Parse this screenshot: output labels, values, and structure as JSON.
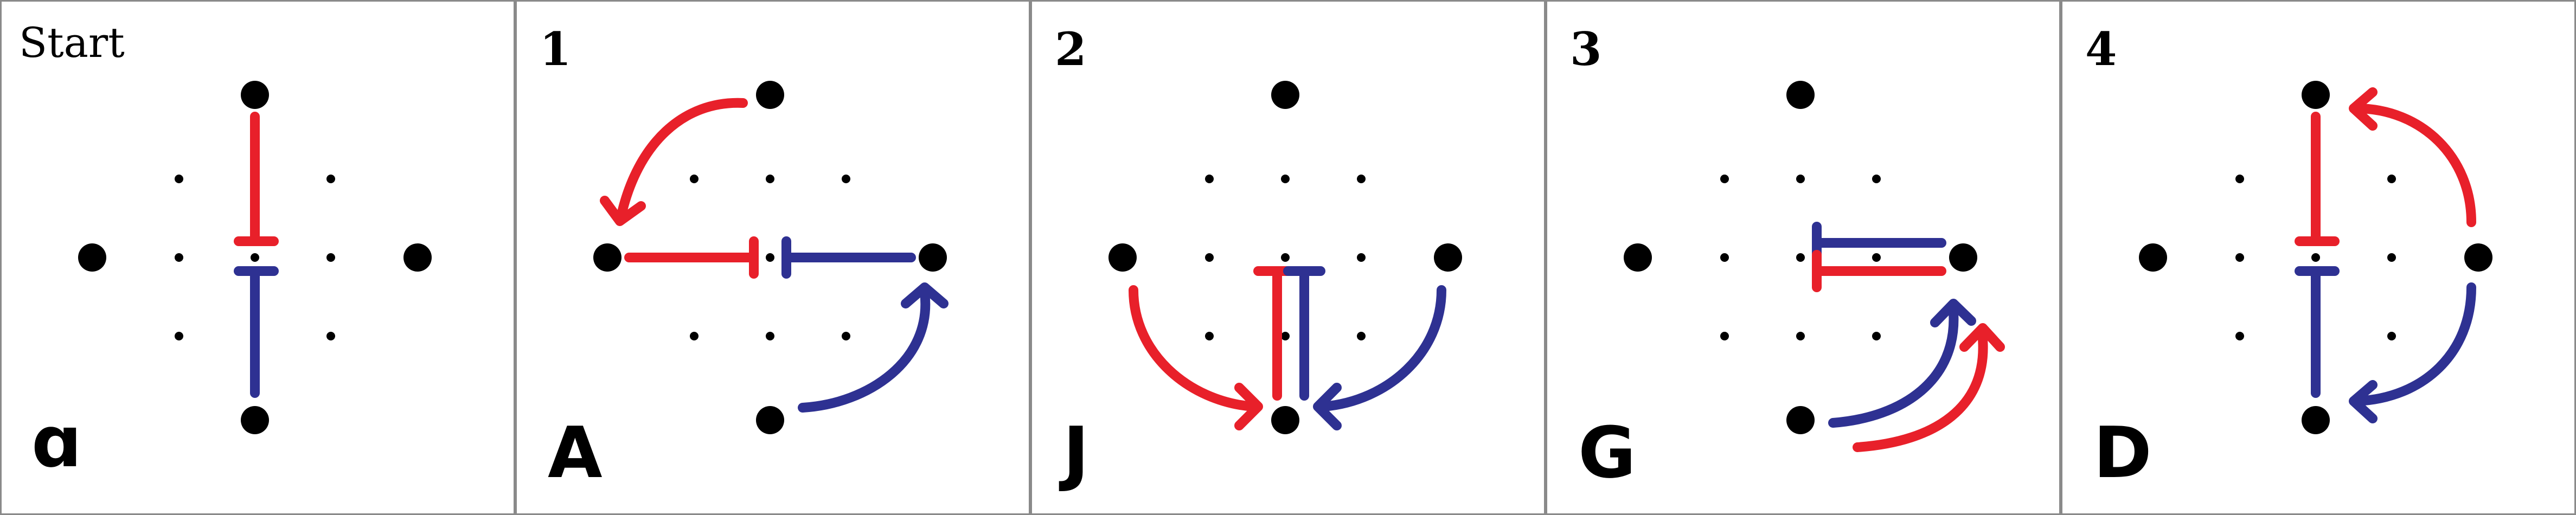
{
  "colors": {
    "red": "#e8202a",
    "blue": "#2e3192",
    "frame": "#8a8a8a"
  },
  "panels": [
    {
      "title": "Start",
      "letter": "ɑ"
    },
    {
      "title": "1",
      "letter": "A"
    },
    {
      "title": "2",
      "letter": "J"
    },
    {
      "title": "3",
      "letter": "G"
    },
    {
      "title": "4",
      "letter": "D"
    }
  ]
}
